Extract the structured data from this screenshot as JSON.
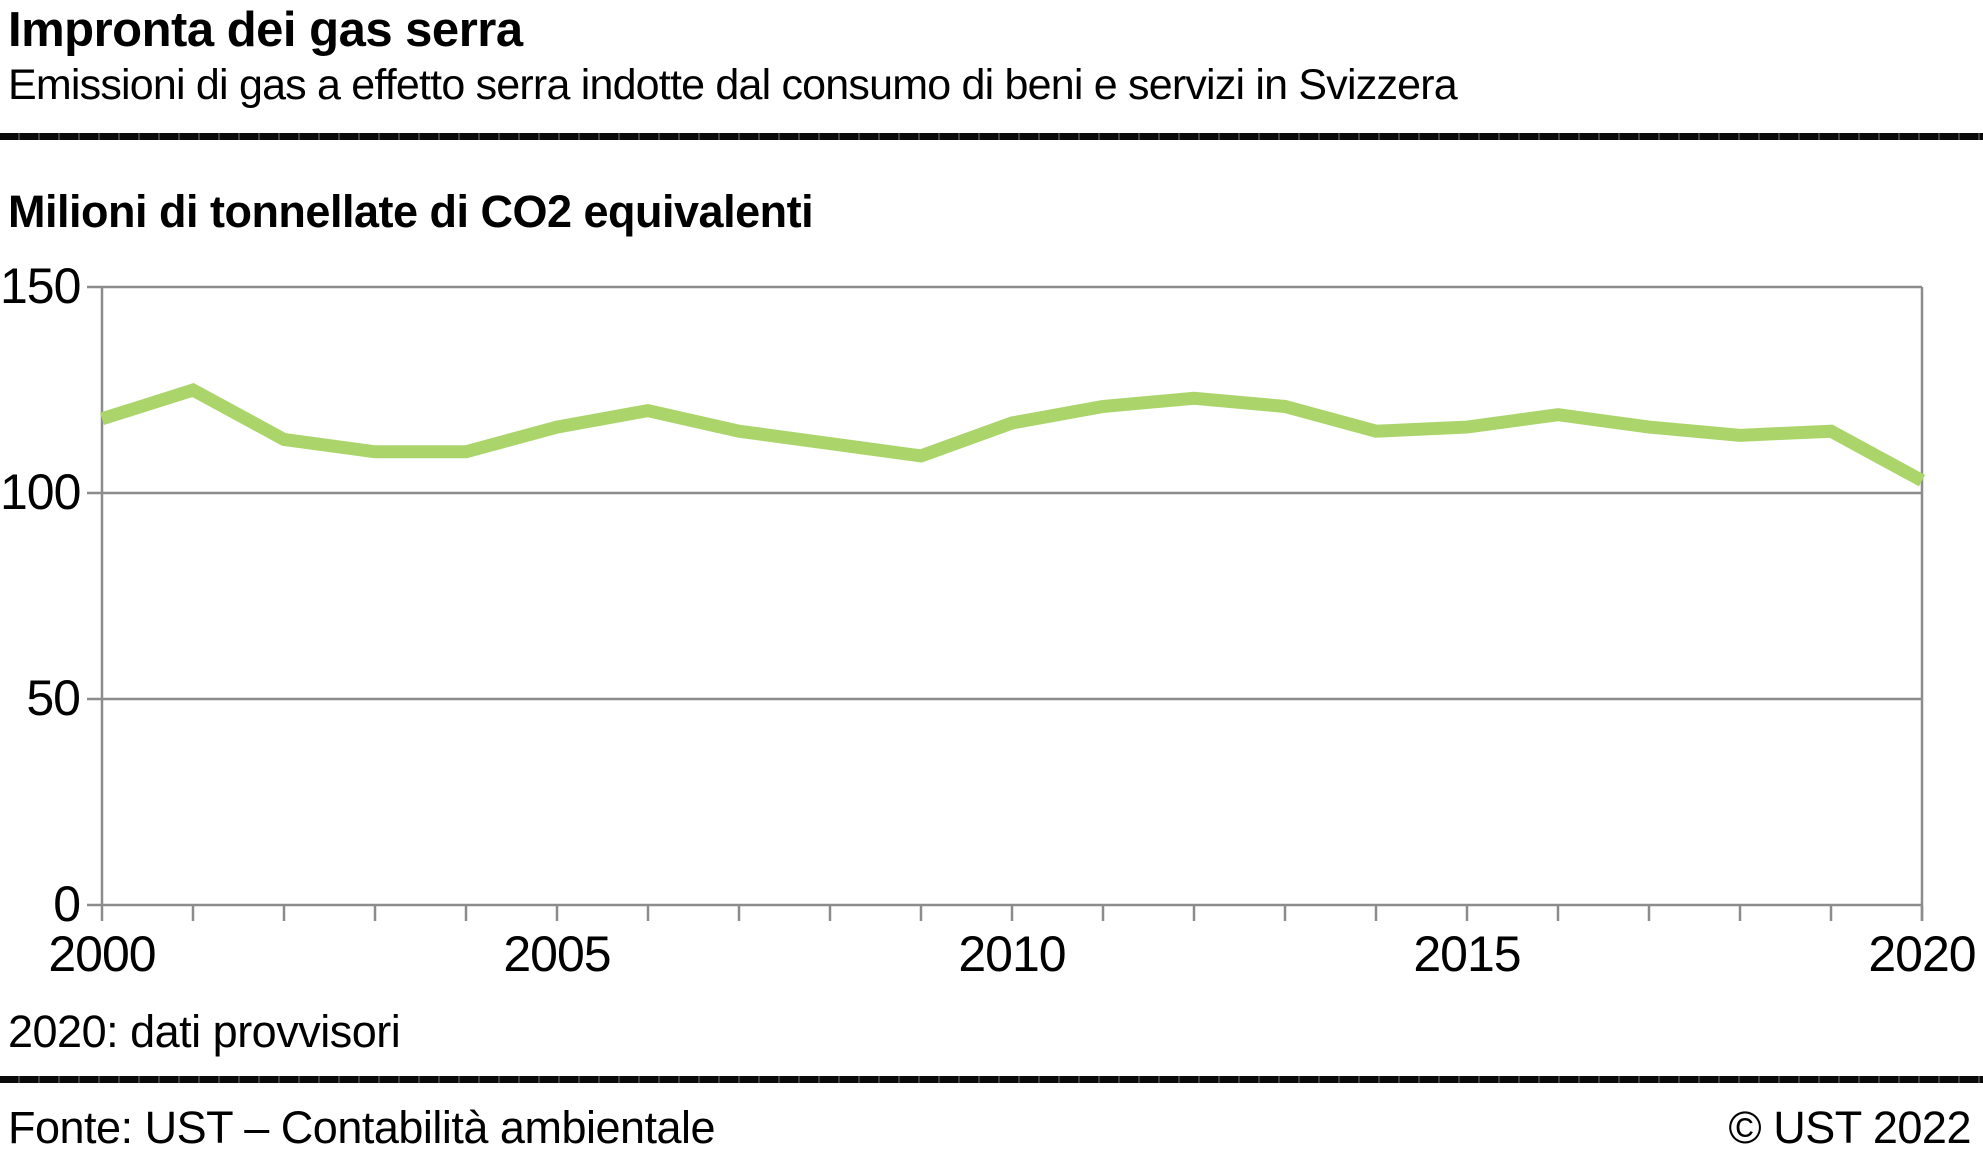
{
  "header": {
    "title": "Impronta dei gas serra",
    "subtitle": "Emissioni di gas a effetto serra indotte dal consumo di beni e servizi in Svizzera"
  },
  "chart_data": {
    "type": "line",
    "title": "Impronta dei gas serra",
    "unit_label": "Milioni di tonnellate di CO2 equivalenti",
    "x": [
      2000,
      2001,
      2002,
      2003,
      2004,
      2005,
      2006,
      2007,
      2008,
      2009,
      2010,
      2011,
      2012,
      2013,
      2014,
      2015,
      2016,
      2017,
      2018,
      2019,
      2020
    ],
    "series": [
      {
        "name": "Emissioni di gas a effetto serra indotte dal consumo (impronta)",
        "values": [
          118,
          125,
          113,
          110,
          110,
          116,
          120,
          115,
          112,
          109,
          117,
          121,
          123,
          121,
          115,
          116,
          119,
          116,
          114,
          115,
          103
        ]
      }
    ],
    "xlim": [
      2000,
      2020
    ],
    "ylim": [
      0,
      150
    ],
    "y_ticks": [
      150,
      100,
      50,
      0
    ],
    "y_tick_labels": [
      "150",
      "100",
      "50",
      "0"
    ],
    "x_tick_labels": [
      "2000",
      "2005",
      "2010",
      "2015",
      "2020"
    ],
    "x_minor_tick_every_year": true,
    "grid": true,
    "grid_color": "#8c8c8c",
    "line_color": "#abd56b",
    "legend_position": "none"
  },
  "footnote": {
    "note": "2020: dati provvisori"
  },
  "footer": {
    "source": "Fonte: UST – Contabilità ambientale",
    "copyright": "© UST 2022"
  }
}
